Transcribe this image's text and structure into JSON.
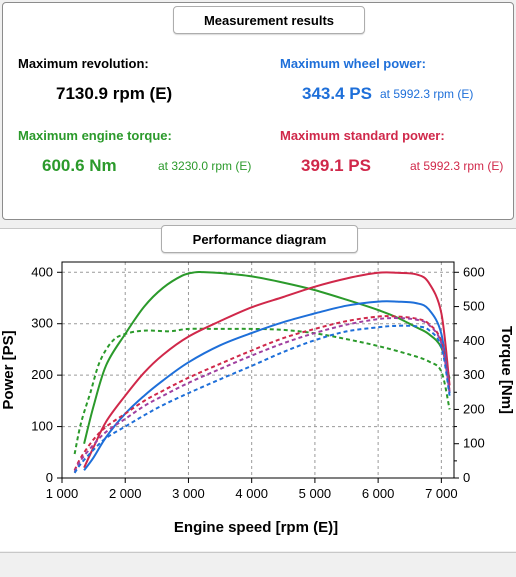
{
  "results": {
    "header": "Measurement results",
    "max_rev": {
      "label": "Maximum revolution:",
      "value": "7130.9 rpm (E)"
    },
    "max_wheel": {
      "label": "Maximum wheel power:",
      "value": "343.4 PS",
      "at": "at 5992.3 rpm (E)"
    },
    "max_torque": {
      "label": "Maximum engine torque:",
      "value": "600.6 Nm",
      "at": "at 3230.0 rpm (E)"
    },
    "max_std": {
      "label": "Maximum standard power:",
      "value": "399.1 PS",
      "at": "at 5992.3 rpm (E)"
    }
  },
  "colors": {
    "blue": "#1e6fd9",
    "green": "#2b9a2b",
    "red": "#d0284a",
    "purple": "#a040a0"
  },
  "chart": {
    "header": "Performance diagram"
  },
  "chart_data": {
    "type": "line",
    "xlabel": "Engine speed [rpm (E)]",
    "ylabel": "Power [PS]",
    "y2label": "Torque [Nm]",
    "xlim": [
      1000,
      7200
    ],
    "ylim": [
      0,
      420
    ],
    "y2lim": [
      0,
      630
    ],
    "xticks": [
      1000,
      2000,
      3000,
      4000,
      5000,
      6000,
      7000
    ],
    "xtick_labels": [
      "1 000",
      "2 000",
      "3 000",
      "4 000",
      "5 000",
      "6 000",
      "7 000"
    ],
    "yticks": [
      0,
      100,
      200,
      300,
      400
    ],
    "y2ticks": [
      0,
      100,
      200,
      300,
      400,
      500,
      600
    ],
    "grid": true,
    "series": [
      {
        "axis": "y2",
        "style": "solid",
        "color": "#2b9a2b",
        "x": [
          1350,
          1500,
          1700,
          2000,
          2300,
          2600,
          2900,
          3100,
          3230,
          3500,
          4000,
          4500,
          5000,
          5500,
          6000,
          6300,
          6600,
          6800,
          7000,
          7130
        ],
        "y": [
          100,
          210,
          330,
          420,
          500,
          555,
          590,
          600,
          600.6,
          598,
          588,
          570,
          548,
          520,
          490,
          468,
          440,
          420,
          380,
          290
        ]
      },
      {
        "axis": "y2",
        "style": "dashed",
        "color": "#2b9a2b",
        "x": [
          1200,
          1300,
          1450,
          1600,
          1800,
          2000,
          2300,
          2700,
          3000,
          3500,
          4000,
          4500,
          5000,
          5500,
          6000,
          6500,
          6800,
          7000,
          7130
        ],
        "y": [
          70,
          160,
          250,
          340,
          400,
          420,
          430,
          428,
          435,
          435,
          435,
          432,
          422,
          405,
          385,
          360,
          340,
          310,
          200
        ]
      },
      {
        "axis": "y1",
        "style": "solid",
        "color": "#d0284a",
        "x": [
          1350,
          1500,
          1700,
          2000,
          2300,
          2600,
          3000,
          3500,
          4000,
          4500,
          5000,
          5500,
          6000,
          6300,
          6600,
          6800,
          7000,
          7130
        ],
        "y": [
          20,
          60,
          110,
          160,
          205,
          240,
          275,
          305,
          332,
          352,
          372,
          388,
          399,
          399,
          396,
          380,
          320,
          180
        ]
      },
      {
        "axis": "y1",
        "style": "solid",
        "color": "#1e6fd9",
        "x": [
          1350,
          1500,
          1700,
          2000,
          2300,
          2600,
          3000,
          3500,
          4000,
          4500,
          5000,
          5500,
          6000,
          6300,
          6600,
          6800,
          7000,
          7130
        ],
        "y": [
          15,
          40,
          80,
          125,
          160,
          190,
          225,
          258,
          282,
          303,
          320,
          335,
          343,
          343,
          340,
          328,
          280,
          165
        ]
      },
      {
        "axis": "y1",
        "style": "dashed",
        "color": "#d0284a",
        "x": [
          1200,
          1300,
          1500,
          1700,
          2000,
          2300,
          2600,
          3000,
          3500,
          4000,
          4500,
          5000,
          5500,
          6000,
          6300,
          6600,
          6800,
          7000,
          7130
        ],
        "y": [
          15,
          40,
          75,
          100,
          125,
          150,
          170,
          195,
          222,
          248,
          272,
          290,
          305,
          314,
          314,
          310,
          300,
          265,
          170
        ]
      },
      {
        "axis": "y1",
        "style": "dashed",
        "color": "#a040a0",
        "x": [
          1200,
          1300,
          1500,
          1700,
          2000,
          2300,
          2600,
          3000,
          3500,
          4000,
          4500,
          5000,
          5500,
          6000,
          6300,
          6600,
          6800,
          7000,
          7130
        ],
        "y": [
          12,
          35,
          65,
          90,
          115,
          140,
          160,
          185,
          212,
          238,
          262,
          282,
          298,
          309,
          311,
          308,
          298,
          262,
          168
        ]
      },
      {
        "axis": "y1",
        "style": "dashed",
        "color": "#1e6fd9",
        "x": [
          1200,
          1300,
          1500,
          1700,
          2000,
          2300,
          2600,
          3000,
          3500,
          4000,
          4500,
          5000,
          5500,
          6000,
          6300,
          6600,
          6800,
          7000,
          7130
        ],
        "y": [
          10,
          28,
          55,
          78,
          100,
          122,
          142,
          165,
          192,
          218,
          245,
          268,
          285,
          293,
          296,
          295,
          288,
          255,
          160
        ]
      }
    ]
  }
}
